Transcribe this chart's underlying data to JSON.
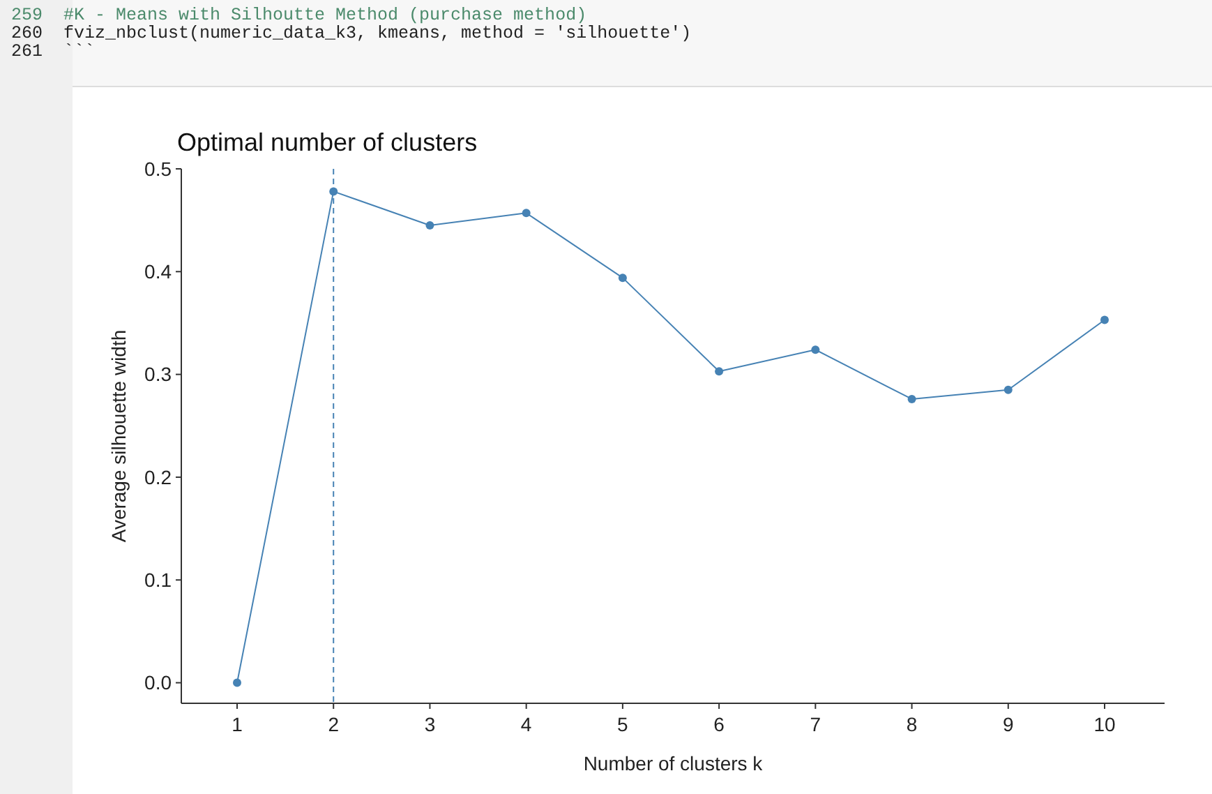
{
  "chart_data": {
    "type": "line",
    "title": "Optimal number of clusters",
    "xlabel": "Number of clusters k",
    "ylabel": "Average silhouette width",
    "annotations": [
      "259  #K - Means with Silhoutte Method (purchase method)",
      "260  fviz_nbclust(numeric_data_k3, kmeans, method = 'silhouette')",
      "261  ```"
    ],
    "categories": [
      "1",
      "2",
      "3",
      "4",
      "5",
      "6",
      "7",
      "8",
      "9",
      "10"
    ],
    "series": [
      {
        "color": "#4682b4",
        "values": [
          0,
          0.478,
          0.445,
          0.457,
          0.394,
          0.303,
          0.324,
          0.276,
          0.285,
          0.353
        ]
      }
    ],
    "ylim": [
      -0.02,
      0.5
    ],
    "yticks": [
      {
        "value": 0,
        "label": "0.0"
      },
      0.1,
      0.2,
      0.3,
      0.4,
      0.5
    ],
    "ref_lines": [
      {
        "axis": "x",
        "value": "2",
        "color": "#4682b4",
        "line_style": "dashed"
      }
    ],
    "grid": false,
    "marker": "circle",
    "line_style": "solid"
  }
}
